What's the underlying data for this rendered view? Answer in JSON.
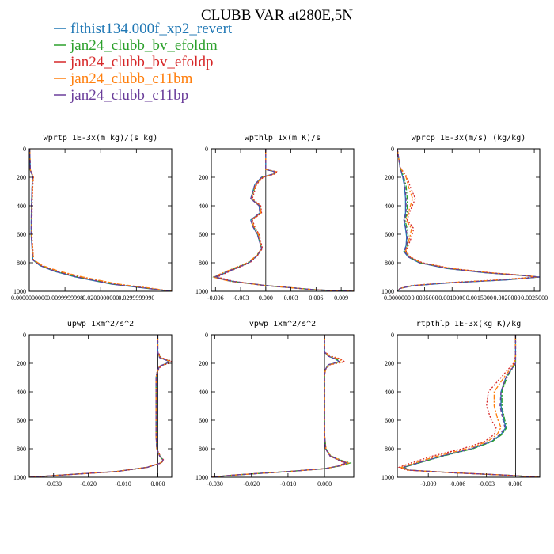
{
  "title": "CLUBB VAR at280E,5N",
  "legend": [
    {
      "label": "flthist134.000f_xp2_revert",
      "color": "#1f77b4",
      "dash": ""
    },
    {
      "label": "jan24_clubb_bv_efoldm",
      "color": "#2ca02c",
      "dash": "6,2,2,2"
    },
    {
      "label": "jan24_clubb_bv_efoldp",
      "color": "#d62728",
      "dash": "2,2"
    },
    {
      "label": "jan24_clubb_c11bm",
      "color": "#ff7f0e",
      "dash": "6,2,2,2"
    },
    {
      "label": "jan24_clubb_c11bp",
      "color": "#6a3d9a",
      "dash": "4,3"
    }
  ],
  "chart_data": [
    {
      "type": "line",
      "title": "wprtp  1E-3x(m kg)/(s kg)",
      "xlim": [
        0.0,
        0.0399
      ],
      "ylim": [
        0,
        1000
      ],
      "y_inverted": true,
      "xticks": [
        0.0,
        0.01,
        0.02,
        0.03
      ],
      "xtick_labels": [
        "0.0000000000",
        "0.0099999998",
        "0.0200000000",
        "0.0299999990"
      ],
      "yticks": [
        0,
        200,
        400,
        600,
        800,
        1000
      ],
      "y": [
        0,
        150,
        200,
        250,
        400,
        600,
        780,
        820,
        860,
        900,
        950,
        980,
        1000
      ],
      "series": [
        {
          "x": [
            0.0001,
            0.0003,
            0.001,
            0.0008,
            0.0006,
            0.0005,
            0.001,
            0.003,
            0.007,
            0.013,
            0.023,
            0.033,
            0.04
          ]
        },
        {
          "x": [
            0.0001,
            0.0003,
            0.0011,
            0.0009,
            0.0007,
            0.0006,
            0.0011,
            0.0032,
            0.0074,
            0.0136,
            0.0236,
            0.0335,
            0.04
          ]
        },
        {
          "x": [
            0.0001,
            0.0003,
            0.0012,
            0.001,
            0.0008,
            0.0007,
            0.0012,
            0.0035,
            0.008,
            0.0145,
            0.0245,
            0.034,
            0.04
          ]
        },
        {
          "x": [
            0.0001,
            0.0003,
            0.0011,
            0.0009,
            0.0007,
            0.0006,
            0.0012,
            0.0037,
            0.0085,
            0.015,
            0.025,
            0.0345,
            0.04
          ]
        },
        {
          "x": [
            0.0001,
            0.0003,
            0.001,
            0.0008,
            0.0006,
            0.0005,
            0.001,
            0.0031,
            0.0072,
            0.0133,
            0.0233,
            0.0332,
            0.04
          ]
        }
      ]
    },
    {
      "type": "line",
      "title": "wpthlp  1x(m K)/s",
      "xlim": [
        -0.0065,
        0.0105
      ],
      "ylim": [
        0,
        1000
      ],
      "y_inverted": true,
      "xticks": [
        -0.006,
        -0.003,
        0.0,
        0.003,
        0.006,
        0.009
      ],
      "xtick_labels": [
        "-0.006",
        "-0.003",
        "0.000",
        "0.003",
        "0.006",
        "0.009"
      ],
      "yticks": [
        0,
        200,
        400,
        600,
        800,
        1000
      ],
      "y": [
        0,
        100,
        145,
        160,
        175,
        200,
        250,
        350,
        400,
        450,
        500,
        550,
        600,
        700,
        750,
        800,
        850,
        900,
        930,
        960,
        990,
        1000
      ],
      "series": [
        {
          "x": [
            0.0,
            0.0,
            0.0,
            0.001,
            0.001,
            -0.0005,
            -0.0013,
            -0.0018,
            -0.0008,
            -0.0007,
            -0.0018,
            -0.0015,
            -0.001,
            -0.0005,
            -0.001,
            -0.002,
            -0.004,
            -0.006,
            -0.004,
            0.0,
            0.006,
            0.0105
          ]
        },
        {
          "x": [
            0.0,
            0.0,
            0.0,
            0.0011,
            0.0011,
            -0.0004,
            -0.0012,
            -0.0017,
            -0.0007,
            -0.0006,
            -0.0017,
            -0.0014,
            -0.0009,
            -0.0005,
            -0.0011,
            -0.0021,
            -0.0042,
            -0.0062,
            -0.0042,
            0.0,
            0.006,
            0.0105
          ]
        },
        {
          "x": [
            0.0,
            0.0,
            0.0,
            0.0013,
            0.0012,
            -0.0003,
            -0.0011,
            -0.0016,
            -0.0006,
            -0.0005,
            -0.0016,
            -0.0013,
            -0.0008,
            -0.0004,
            -0.001,
            -0.0019,
            -0.0039,
            -0.0058,
            -0.0038,
            0.0,
            0.006,
            0.0105
          ]
        },
        {
          "x": [
            0.0,
            0.0,
            0.0,
            0.0012,
            0.0011,
            -0.0004,
            -0.0012,
            -0.0017,
            -0.0007,
            -0.0006,
            -0.0017,
            -0.0014,
            -0.0009,
            -0.0005,
            -0.0011,
            -0.0022,
            -0.0043,
            -0.0063,
            -0.0043,
            0.0,
            0.006,
            0.0105
          ]
        },
        {
          "x": [
            0.0,
            0.0,
            0.0,
            0.001,
            0.001,
            -0.0005,
            -0.0013,
            -0.0018,
            -0.0008,
            -0.0007,
            -0.0018,
            -0.0015,
            -0.001,
            -0.0005,
            -0.001,
            -0.002,
            -0.0041,
            -0.0061,
            -0.0041,
            0.0,
            0.006,
            0.0105
          ]
        }
      ]
    },
    {
      "type": "line",
      "title": "wprcp  1E-3x(m/s) (kg/kg)",
      "xlim": [
        0.0,
        0.0026
      ],
      "ylim": [
        0,
        1000
      ],
      "y_inverted": true,
      "xticks": [
        0.0,
        0.0005,
        0.001,
        0.0015,
        0.002,
        0.0025
      ],
      "xtick_labels": [
        "0.0000000",
        "0.0005000",
        "0.0010000",
        "0.0015000",
        "0.0020000",
        "0.0025000"
      ],
      "yticks": [
        0,
        200,
        400,
        600,
        800,
        1000
      ],
      "y": [
        0,
        130,
        200,
        260,
        350,
        450,
        500,
        560,
        620,
        680,
        720,
        760,
        800,
        840,
        870,
        890,
        900,
        920,
        940,
        960,
        980,
        1000
      ],
      "series": [
        {
          "x": [
            0.0,
            5e-05,
            0.0001,
            0.00013,
            0.00015,
            0.00015,
            0.00012,
            0.00015,
            0.00017,
            0.00016,
            0.00012,
            0.0002,
            0.0004,
            0.0009,
            0.0016,
            0.0023,
            0.0026,
            0.002,
            0.001,
            0.0003,
            5e-05,
            0.0
          ]
        },
        {
          "x": [
            0.0,
            5e-05,
            0.00012,
            0.00016,
            0.00018,
            0.00018,
            0.00014,
            0.00018,
            0.0002,
            0.00018,
            0.00014,
            0.00022,
            0.00042,
            0.00095,
            0.00165,
            0.00235,
            0.00258,
            0.00195,
            0.00095,
            0.00028,
            5e-05,
            0.0
          ]
        },
        {
          "x": [
            0.0,
            5e-05,
            0.00018,
            0.00023,
            0.00033,
            0.00022,
            0.00018,
            0.0003,
            0.00026,
            0.0002,
            0.00016,
            0.00024,
            0.00046,
            0.001,
            0.0017,
            0.00238,
            0.0025,
            0.00185,
            0.0009,
            0.00026,
            5e-05,
            0.0
          ]
        },
        {
          "x": [
            0.0,
            5e-05,
            0.00016,
            0.0002,
            0.00028,
            0.0002,
            0.00016,
            0.00026,
            0.00023,
            0.00018,
            0.00015,
            0.00023,
            0.00044,
            0.00098,
            0.00168,
            0.00236,
            0.00255,
            0.0019,
            0.00092,
            0.00027,
            5e-05,
            0.0
          ]
        },
        {
          "x": [
            0.0,
            5e-05,
            0.00011,
            0.00014,
            0.00016,
            0.00016,
            0.00013,
            0.00016,
            0.00018,
            0.00017,
            0.00013,
            0.00021,
            0.00041,
            0.00092,
            0.00162,
            0.00232,
            0.00259,
            0.00198,
            0.00098,
            0.00029,
            5e-05,
            0.0
          ]
        }
      ]
    },
    {
      "type": "line",
      "title": "upwp  1xm^2/s^2",
      "xlim": [
        -0.037,
        0.004
      ],
      "ylim": [
        0,
        1000
      ],
      "y_inverted": true,
      "xticks": [
        -0.03,
        -0.02,
        -0.01,
        0.0
      ],
      "xtick_labels": [
        "-0.030",
        "-0.020",
        "-0.010",
        "0.000"
      ],
      "yticks": [
        0,
        200,
        400,
        600,
        800,
        1000
      ],
      "y": [
        0,
        120,
        160,
        185,
        200,
        220,
        260,
        300,
        500,
        700,
        800,
        850,
        880,
        900,
        930,
        960,
        985,
        1000
      ],
      "series": [
        {
          "x": [
            0.0,
            0.0,
            0.0005,
            0.003,
            0.0025,
            0.0005,
            -0.0002,
            -0.0005,
            -0.0005,
            -0.0005,
            -0.0003,
            0.0005,
            0.0015,
            0.0008,
            -0.003,
            -0.012,
            -0.028,
            -0.037
          ]
        },
        {
          "x": [
            0.0,
            0.0,
            0.0007,
            0.0035,
            0.0028,
            0.0006,
            -0.0002,
            -0.0005,
            -0.0005,
            -0.0005,
            -0.0003,
            0.0006,
            0.0016,
            0.0009,
            -0.003,
            -0.012,
            -0.028,
            -0.037
          ]
        },
        {
          "x": [
            0.0,
            0.0,
            0.001,
            0.004,
            0.0032,
            0.0008,
            -0.0001,
            -0.0004,
            -0.0005,
            -0.0005,
            -0.0003,
            0.0007,
            0.0017,
            0.001,
            -0.0028,
            -0.0118,
            -0.0278,
            -0.037
          ]
        },
        {
          "x": [
            0.0,
            0.0,
            0.0006,
            0.0033,
            0.0027,
            0.0005,
            -0.0002,
            -0.0005,
            -0.0005,
            -0.0005,
            -0.0003,
            0.0005,
            0.0014,
            0.0007,
            -0.0032,
            -0.0122,
            -0.0282,
            -0.037
          ]
        },
        {
          "x": [
            0.0,
            0.0,
            0.0005,
            0.0031,
            0.0026,
            0.0005,
            -0.0002,
            -0.0005,
            -0.0005,
            -0.0005,
            -0.0003,
            0.0005,
            0.0015,
            0.0008,
            -0.003,
            -0.012,
            -0.028,
            -0.037
          ]
        }
      ]
    },
    {
      "type": "line",
      "title": "vpwp  1xm^2/s^2",
      "xlim": [
        -0.031,
        0.008
      ],
      "ylim": [
        0,
        1000
      ],
      "y_inverted": true,
      "xticks": [
        -0.03,
        -0.02,
        -0.01,
        0.0
      ],
      "xtick_labels": [
        "-0.030",
        "-0.020",
        "-0.010",
        "0.000"
      ],
      "yticks": [
        0,
        200,
        400,
        600,
        800,
        1000
      ],
      "y": [
        0,
        120,
        150,
        170,
        190,
        210,
        240,
        280,
        500,
        700,
        800,
        850,
        880,
        900,
        920,
        940,
        960,
        985,
        1000
      ],
      "series": [
        {
          "x": [
            0.0,
            0.0,
            0.001,
            0.003,
            0.004,
            0.001,
            0.0003,
            0.0,
            0.0,
            0.0,
            0.0003,
            0.0015,
            0.004,
            0.006,
            0.004,
            0.0,
            -0.01,
            -0.025,
            -0.031
          ]
        },
        {
          "x": [
            0.0,
            0.0,
            0.0012,
            0.0033,
            0.0042,
            0.0011,
            0.0003,
            0.0,
            0.0,
            0.0,
            0.0004,
            0.0017,
            0.0045,
            0.007,
            0.0045,
            0.0,
            -0.01,
            -0.025,
            -0.031
          ]
        },
        {
          "x": [
            0.0,
            0.0,
            0.0018,
            0.0045,
            0.0055,
            0.0015,
            0.0004,
            0.0,
            0.0,
            0.0,
            0.0003,
            0.0014,
            0.0038,
            0.0055,
            0.0038,
            0.0,
            -0.01,
            -0.025,
            -0.031
          ]
        },
        {
          "x": [
            0.0,
            0.0,
            0.0014,
            0.004,
            0.005,
            0.0013,
            0.0003,
            0.0,
            0.0,
            0.0,
            0.0004,
            0.0016,
            0.0043,
            0.0065,
            0.0042,
            0.0,
            -0.01,
            -0.025,
            -0.031
          ]
        },
        {
          "x": [
            0.0,
            0.0,
            0.001,
            0.0031,
            0.0041,
            0.001,
            0.0003,
            0.0,
            0.0,
            0.0,
            0.0003,
            0.0015,
            0.0041,
            0.0061,
            0.0041,
            0.0,
            -0.01,
            -0.025,
            -0.031
          ]
        }
      ]
    },
    {
      "type": "line",
      "title": "rtpthlp  1E-3x(kg K)/kg",
      "xlim": [
        -0.0122,
        0.0025
      ],
      "ylim": [
        0,
        1000
      ],
      "y_inverted": true,
      "xticks": [
        -0.009,
        -0.006,
        -0.003,
        0.0
      ],
      "xtick_labels": [
        "-0.009",
        "-0.006",
        "-0.003",
        "0.000"
      ],
      "yticks": [
        0,
        200,
        400,
        600,
        800,
        1000
      ],
      "y": [
        0,
        150,
        200,
        300,
        400,
        500,
        600,
        650,
        700,
        750,
        800,
        850,
        900,
        930,
        950,
        970,
        985,
        1000
      ],
      "series": [
        {
          "x": [
            0.0,
            0.0,
            0.0,
            -0.001,
            -0.0015,
            -0.0015,
            -0.0012,
            -0.001,
            -0.0015,
            -0.0025,
            -0.0045,
            -0.0075,
            -0.01,
            -0.0115,
            -0.011,
            -0.006,
            -0.001,
            0.0025
          ]
        },
        {
          "x": [
            0.0,
            0.0,
            0.0,
            -0.0009,
            -0.0014,
            -0.0014,
            -0.0011,
            -0.0009,
            -0.0014,
            -0.0024,
            -0.0044,
            -0.0074,
            -0.01,
            -0.0115,
            -0.011,
            -0.006,
            -0.001,
            0.0025
          ]
        },
        {
          "x": [
            0.0,
            0.0,
            -0.0002,
            -0.0015,
            -0.0028,
            -0.003,
            -0.0025,
            -0.002,
            -0.0022,
            -0.0032,
            -0.0055,
            -0.0085,
            -0.0108,
            -0.012,
            -0.0112,
            -0.006,
            -0.001,
            0.0025
          ]
        },
        {
          "x": [
            0.0,
            0.0,
            -0.0001,
            -0.0012,
            -0.0022,
            -0.0022,
            -0.0018,
            -0.0015,
            -0.0019,
            -0.0029,
            -0.005,
            -0.008,
            -0.0104,
            -0.0118,
            -0.0111,
            -0.006,
            -0.001,
            0.0025
          ]
        },
        {
          "x": [
            0.0,
            0.0,
            0.0,
            -0.001,
            -0.0015,
            -0.0016,
            -0.0013,
            -0.0011,
            -0.0016,
            -0.0026,
            -0.0046,
            -0.0076,
            -0.0101,
            -0.0116,
            -0.011,
            -0.006,
            -0.001,
            0.0025
          ]
        }
      ]
    }
  ]
}
